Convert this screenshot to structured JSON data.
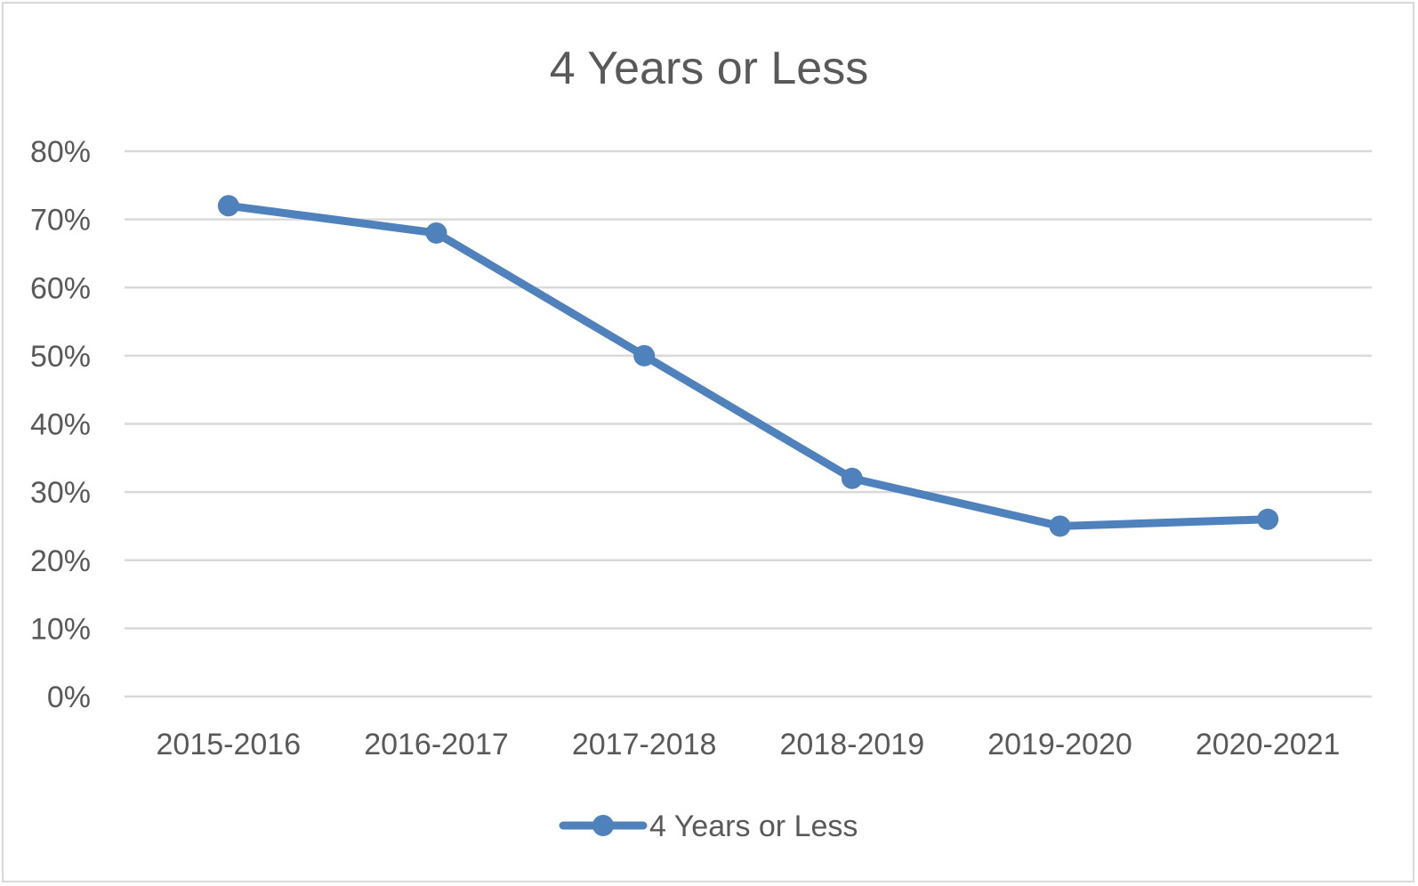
{
  "chart_data": {
    "type": "line",
    "title": "4 Years or Less",
    "categories": [
      "2015-2016",
      "2016-2017",
      "2017-2018",
      "2018-2019",
      "2019-2020",
      "2020-2021"
    ],
    "series": [
      {
        "name": "4 Years or Less",
        "values": [
          72,
          68,
          50,
          32,
          25,
          26
        ],
        "color": "#4f81bd"
      }
    ],
    "y_ticks": [
      "0%",
      "10%",
      "20%",
      "30%",
      "40%",
      "50%",
      "60%",
      "70%",
      "80%"
    ],
    "ylim": [
      0,
      80
    ],
    "ystep": 10,
    "xlabel": "",
    "ylabel": "",
    "grid": true,
    "legend_position": "bottom"
  }
}
